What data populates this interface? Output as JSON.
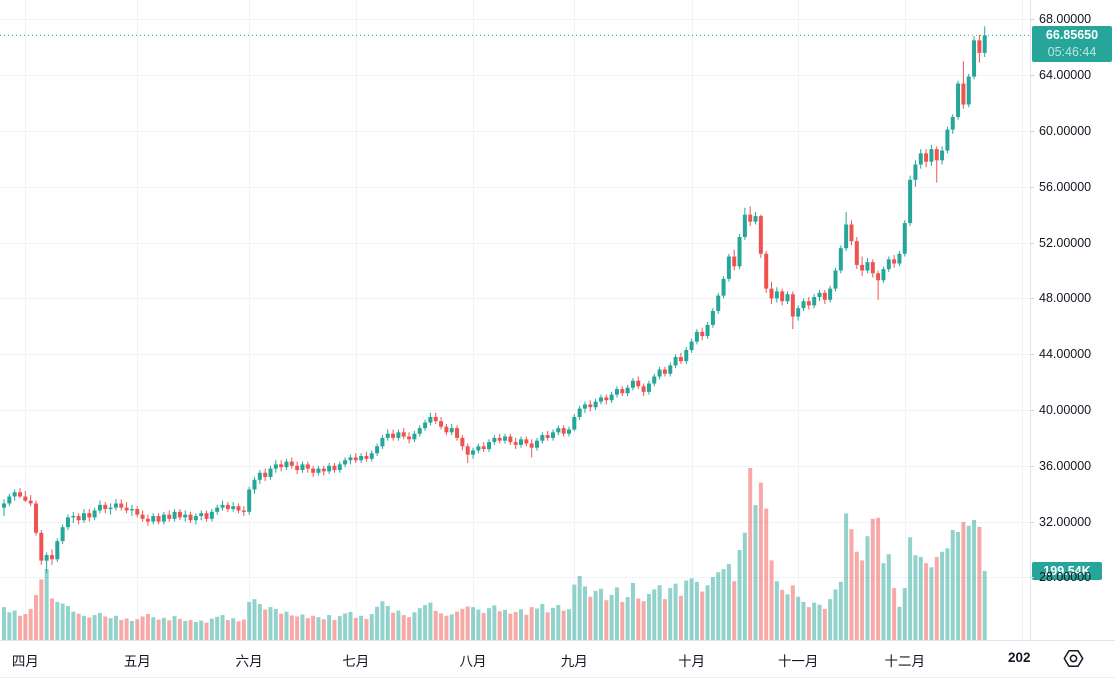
{
  "price_scale": {
    "last_price": "66.85650",
    "countdown": "05:46:44",
    "volume_label": "199.54K"
  },
  "time_scale": {
    "year": {
      "label": "202",
      "index": 191
    }
  },
  "chart_data": {
    "type": "candlestick",
    "volume_overlay": true,
    "title": "",
    "xlabel": "",
    "ylabel": "",
    "ylim": [
      28,
      68
    ],
    "grid": true,
    "legend_position": "none",
    "last_close": 66.8565,
    "last_volume_k": 199.54,
    "y_ticks": [
      {
        "value": 68,
        "label": "68.00000"
      },
      {
        "value": 64,
        "label": "64.00000"
      },
      {
        "value": 60,
        "label": "60.00000"
      },
      {
        "value": 56,
        "label": "56.00000"
      },
      {
        "value": 52,
        "label": "52.00000"
      },
      {
        "value": 48,
        "label": "48.00000"
      },
      {
        "value": 44,
        "label": "44.00000"
      },
      {
        "value": 40,
        "label": "40.00000"
      },
      {
        "value": 36,
        "label": "36.00000"
      },
      {
        "value": 32,
        "label": "32.00000"
      },
      {
        "value": 28,
        "label": "28.00000"
      }
    ],
    "months": [
      {
        "label": "四月",
        "index": 4
      },
      {
        "label": "五月",
        "index": 25
      },
      {
        "label": "六月",
        "index": 46
      },
      {
        "label": "七月",
        "index": 66
      },
      {
        "label": "八月",
        "index": 88
      },
      {
        "label": "九月",
        "index": 107
      },
      {
        "label": "十月",
        "index": 129
      },
      {
        "label": "十一月",
        "index": 149
      },
      {
        "label": "十二月",
        "index": 169
      }
    ],
    "colors": {
      "up": "#26a69a",
      "down": "#ef5350",
      "grid": "#f0f3fa",
      "axis_text": "#131722",
      "price_line": "#26a69a",
      "price_badge_bg": "#26a69a",
      "volume_badge_bg": "#26a69a",
      "volume_opacity": 0.5
    },
    "candles_format": [
      "open",
      "high",
      "low",
      "close",
      "volume_k"
    ],
    "candles": [
      [
        33.0,
        33.6,
        32.4,
        33.3,
        95
      ],
      [
        33.3,
        34.0,
        33.1,
        33.8,
        80
      ],
      [
        33.8,
        34.3,
        33.5,
        34.1,
        85
      ],
      [
        34.1,
        34.4,
        33.7,
        33.8,
        70
      ],
      [
        33.8,
        34.2,
        33.4,
        33.5,
        75
      ],
      [
        33.5,
        33.9,
        33.1,
        33.3,
        90
      ],
      [
        33.3,
        33.5,
        31.0,
        31.2,
        130
      ],
      [
        31.2,
        31.4,
        28.9,
        29.2,
        175
      ],
      [
        29.2,
        29.8,
        28.3,
        29.6,
        205
      ],
      [
        29.6,
        30.0,
        28.9,
        29.3,
        120
      ],
      [
        29.3,
        30.8,
        29.1,
        30.6,
        110
      ],
      [
        30.6,
        31.8,
        30.4,
        31.6,
        105
      ],
      [
        31.6,
        32.5,
        31.4,
        32.3,
        98
      ],
      [
        32.3,
        32.7,
        31.9,
        32.4,
        82
      ],
      [
        32.4,
        32.6,
        31.8,
        32.1,
        76
      ],
      [
        32.1,
        32.9,
        31.9,
        32.6,
        70
      ],
      [
        32.6,
        32.9,
        32.0,
        32.3,
        65
      ],
      [
        32.3,
        33.0,
        32.1,
        32.8,
        72
      ],
      [
        32.8,
        33.5,
        32.6,
        33.2,
        78
      ],
      [
        33.2,
        33.4,
        32.6,
        32.9,
        68
      ],
      [
        32.9,
        33.3,
        32.5,
        33.0,
        63
      ],
      [
        33.0,
        33.6,
        32.8,
        33.3,
        70
      ],
      [
        33.3,
        33.6,
        32.8,
        33.0,
        58
      ],
      [
        33.0,
        33.4,
        32.6,
        32.8,
        62
      ],
      [
        32.8,
        33.2,
        32.4,
        32.9,
        55
      ],
      [
        32.9,
        33.1,
        32.3,
        32.5,
        60
      ],
      [
        32.5,
        32.8,
        32.0,
        32.2,
        68
      ],
      [
        32.2,
        32.5,
        31.7,
        32.0,
        75
      ],
      [
        32.0,
        32.6,
        31.8,
        32.4,
        66
      ],
      [
        32.4,
        32.6,
        31.8,
        32.0,
        59
      ],
      [
        32.0,
        32.7,
        31.8,
        32.5,
        64
      ],
      [
        32.5,
        32.8,
        32.0,
        32.2,
        57
      ],
      [
        32.2,
        32.9,
        32.0,
        32.7,
        69
      ],
      [
        32.7,
        32.9,
        32.1,
        32.3,
        61
      ],
      [
        32.3,
        32.8,
        32.0,
        32.5,
        55
      ],
      [
        32.5,
        32.7,
        31.9,
        32.1,
        58
      ],
      [
        32.1,
        32.6,
        31.8,
        32.4,
        52
      ],
      [
        32.4,
        32.8,
        32.1,
        32.6,
        56
      ],
      [
        32.6,
        32.8,
        32.0,
        32.2,
        50
      ],
      [
        32.2,
        32.9,
        32.0,
        32.7,
        62
      ],
      [
        32.7,
        33.2,
        32.5,
        33.0,
        67
      ],
      [
        33.0,
        33.5,
        32.8,
        33.2,
        72
      ],
      [
        33.2,
        33.4,
        32.7,
        32.9,
        58
      ],
      [
        32.9,
        33.4,
        32.7,
        33.1,
        63
      ],
      [
        33.1,
        33.3,
        32.6,
        32.8,
        54
      ],
      [
        32.8,
        33.1,
        32.4,
        32.7,
        59
      ],
      [
        32.7,
        34.5,
        32.5,
        34.3,
        110
      ],
      [
        34.3,
        35.2,
        34.0,
        35.0,
        118
      ],
      [
        35.0,
        35.7,
        34.7,
        35.5,
        104
      ],
      [
        35.5,
        35.8,
        34.9,
        35.2,
        88
      ],
      [
        35.2,
        36.0,
        35.0,
        35.8,
        95
      ],
      [
        35.8,
        36.4,
        35.5,
        36.1,
        90
      ],
      [
        36.1,
        36.4,
        35.6,
        35.9,
        76
      ],
      [
        35.9,
        36.5,
        35.7,
        36.3,
        82
      ],
      [
        36.3,
        36.6,
        35.8,
        36.0,
        71
      ],
      [
        36.0,
        36.3,
        35.4,
        35.7,
        68
      ],
      [
        35.7,
        36.3,
        35.5,
        36.1,
        74
      ],
      [
        36.1,
        36.3,
        35.5,
        35.8,
        63
      ],
      [
        35.8,
        36.0,
        35.2,
        35.5,
        70
      ],
      [
        35.5,
        36.0,
        35.3,
        35.8,
        66
      ],
      [
        35.8,
        36.0,
        35.3,
        35.6,
        60
      ],
      [
        35.6,
        36.2,
        35.4,
        36.0,
        72
      ],
      [
        36.0,
        36.2,
        35.5,
        35.7,
        58
      ],
      [
        35.7,
        36.3,
        35.5,
        36.1,
        69
      ],
      [
        36.1,
        36.6,
        35.9,
        36.4,
        77
      ],
      [
        36.4,
        36.8,
        36.1,
        36.6,
        81
      ],
      [
        36.6,
        36.9,
        36.2,
        36.4,
        64
      ],
      [
        36.4,
        36.9,
        36.2,
        36.7,
        70
      ],
      [
        36.7,
        37.0,
        36.3,
        36.5,
        61
      ],
      [
        36.5,
        37.1,
        36.3,
        36.9,
        75
      ],
      [
        36.9,
        37.6,
        36.7,
        37.4,
        96
      ],
      [
        37.4,
        38.2,
        37.2,
        38.0,
        112
      ],
      [
        38.0,
        38.6,
        37.8,
        38.3,
        98
      ],
      [
        38.3,
        38.6,
        37.8,
        38.0,
        79
      ],
      [
        38.0,
        38.6,
        37.8,
        38.4,
        85
      ],
      [
        38.4,
        38.7,
        37.9,
        38.1,
        72
      ],
      [
        38.1,
        38.4,
        37.6,
        37.9,
        66
      ],
      [
        37.9,
        38.5,
        37.7,
        38.3,
        80
      ],
      [
        38.3,
        38.9,
        38.1,
        38.7,
        92
      ],
      [
        38.7,
        39.3,
        38.5,
        39.1,
        101
      ],
      [
        39.1,
        39.8,
        38.9,
        39.5,
        108
      ],
      [
        39.5,
        39.8,
        39.0,
        39.2,
        84
      ],
      [
        39.2,
        39.5,
        38.6,
        38.8,
        77
      ],
      [
        38.8,
        39.0,
        38.2,
        38.4,
        70
      ],
      [
        38.4,
        39.0,
        38.2,
        38.7,
        74
      ],
      [
        38.7,
        38.9,
        37.8,
        38.0,
        82
      ],
      [
        38.0,
        38.2,
        37.1,
        37.4,
        90
      ],
      [
        37.4,
        37.6,
        36.2,
        36.8,
        97
      ],
      [
        36.8,
        37.3,
        36.5,
        37.1,
        95
      ],
      [
        37.1,
        37.6,
        36.9,
        37.4,
        88
      ],
      [
        37.4,
        37.7,
        37.0,
        37.2,
        78
      ],
      [
        37.2,
        37.9,
        37.0,
        37.7,
        92
      ],
      [
        37.7,
        38.2,
        37.5,
        38.0,
        100
      ],
      [
        38.0,
        38.3,
        37.6,
        37.8,
        83
      ],
      [
        37.8,
        38.3,
        37.6,
        38.1,
        87
      ],
      [
        38.1,
        38.3,
        37.5,
        37.7,
        76
      ],
      [
        37.7,
        38.0,
        37.2,
        37.5,
        81
      ],
      [
        37.5,
        38.1,
        37.3,
        37.9,
        89
      ],
      [
        37.9,
        38.1,
        37.4,
        37.6,
        73
      ],
      [
        37.6,
        37.9,
        36.6,
        37.3,
        95
      ],
      [
        37.3,
        38.0,
        37.1,
        37.8,
        91
      ],
      [
        37.8,
        38.4,
        37.6,
        38.2,
        104
      ],
      [
        38.2,
        38.5,
        37.8,
        38.0,
        80
      ],
      [
        38.0,
        38.6,
        37.8,
        38.4,
        93
      ],
      [
        38.4,
        38.9,
        38.2,
        38.7,
        101
      ],
      [
        38.7,
        38.9,
        38.1,
        38.3,
        85
      ],
      [
        38.3,
        38.8,
        38.1,
        38.6,
        89
      ],
      [
        38.6,
        39.7,
        38.5,
        39.5,
        160
      ],
      [
        39.5,
        40.3,
        39.3,
        40.1,
        185
      ],
      [
        40.1,
        40.6,
        39.8,
        40.4,
        155
      ],
      [
        40.4,
        40.7,
        39.9,
        40.2,
        125
      ],
      [
        40.2,
        40.8,
        40.0,
        40.6,
        142
      ],
      [
        40.6,
        41.1,
        40.4,
        40.9,
        148
      ],
      [
        40.9,
        41.1,
        40.4,
        40.7,
        115
      ],
      [
        40.7,
        41.3,
        40.5,
        41.1,
        130
      ],
      [
        41.1,
        41.7,
        40.9,
        41.5,
        152
      ],
      [
        41.5,
        41.7,
        41.0,
        41.2,
        110
      ],
      [
        41.2,
        41.8,
        41.0,
        41.6,
        124
      ],
      [
        41.6,
        42.3,
        41.4,
        42.1,
        165
      ],
      [
        42.1,
        42.4,
        41.5,
        41.7,
        120
      ],
      [
        41.7,
        41.9,
        41.0,
        41.3,
        112
      ],
      [
        41.3,
        42.1,
        41.1,
        41.9,
        133
      ],
      [
        41.9,
        42.6,
        41.7,
        42.4,
        146
      ],
      [
        42.4,
        43.1,
        42.2,
        42.9,
        158
      ],
      [
        42.9,
        43.1,
        42.4,
        42.6,
        118
      ],
      [
        42.6,
        43.4,
        42.4,
        43.2,
        150
      ],
      [
        43.2,
        44.0,
        43.0,
        43.8,
        163
      ],
      [
        43.8,
        44.1,
        43.3,
        43.5,
        128
      ],
      [
        43.5,
        44.5,
        43.3,
        44.3,
        172
      ],
      [
        44.3,
        45.1,
        44.1,
        44.9,
        178
      ],
      [
        44.9,
        45.8,
        44.7,
        45.6,
        168
      ],
      [
        45.6,
        45.9,
        45.0,
        45.3,
        140
      ],
      [
        45.3,
        46.3,
        45.1,
        46.1,
        158
      ],
      [
        46.1,
        47.3,
        45.9,
        47.1,
        182
      ],
      [
        47.1,
        48.4,
        46.9,
        48.2,
        196
      ],
      [
        48.2,
        49.6,
        48.0,
        49.4,
        205
      ],
      [
        49.4,
        51.2,
        49.2,
        51.0,
        220
      ],
      [
        51.0,
        51.5,
        50.0,
        50.3,
        170
      ],
      [
        50.3,
        52.6,
        50.1,
        52.4,
        260
      ],
      [
        52.4,
        54.5,
        52.2,
        54.0,
        310
      ],
      [
        54.0,
        54.6,
        53.2,
        53.5,
        497
      ],
      [
        53.5,
        54.2,
        53.3,
        53.9,
        390
      ],
      [
        53.9,
        54.0,
        50.9,
        51.2,
        455
      ],
      [
        51.2,
        51.4,
        48.4,
        48.7,
        380
      ],
      [
        48.7,
        49.2,
        47.6,
        48.0,
        230
      ],
      [
        48.0,
        48.8,
        47.7,
        48.5,
        170
      ],
      [
        48.5,
        48.7,
        47.5,
        47.8,
        145
      ],
      [
        47.8,
        48.5,
        47.6,
        48.3,
        132
      ],
      [
        48.3,
        48.5,
        45.8,
        46.7,
        158
      ],
      [
        46.7,
        47.5,
        46.4,
        47.3,
        125
      ],
      [
        47.3,
        48.0,
        47.1,
        47.8,
        110
      ],
      [
        47.8,
        48.1,
        47.2,
        47.5,
        95
      ],
      [
        47.5,
        48.3,
        47.3,
        48.1,
        108
      ],
      [
        48.1,
        48.6,
        47.8,
        48.4,
        102
      ],
      [
        48.4,
        48.6,
        47.6,
        47.9,
        90
      ],
      [
        47.9,
        48.9,
        47.7,
        48.7,
        118
      ],
      [
        48.7,
        50.2,
        48.5,
        50.0,
        146
      ],
      [
        50.0,
        51.8,
        49.8,
        51.6,
        168
      ],
      [
        51.6,
        54.2,
        51.4,
        53.3,
        366
      ],
      [
        53.3,
        53.6,
        51.8,
        52.1,
        320
      ],
      [
        52.1,
        52.4,
        50.1,
        50.4,
        255
      ],
      [
        50.4,
        51.0,
        49.6,
        50.0,
        230
      ],
      [
        50.0,
        50.9,
        49.8,
        50.6,
        300
      ],
      [
        50.6,
        50.8,
        49.5,
        49.8,
        350
      ],
      [
        49.8,
        50.0,
        47.9,
        49.3,
        353
      ],
      [
        49.3,
        50.3,
        49.1,
        50.1,
        222
      ],
      [
        50.1,
        51.0,
        49.9,
        50.8,
        248
      ],
      [
        50.8,
        51.1,
        50.2,
        50.5,
        150
      ],
      [
        50.5,
        51.4,
        50.3,
        51.2,
        96
      ],
      [
        51.2,
        53.6,
        51.0,
        53.4,
        150
      ],
      [
        53.4,
        56.8,
        53.2,
        56.5,
        297
      ],
      [
        56.5,
        57.9,
        56.0,
        57.6,
        245
      ],
      [
        57.6,
        58.7,
        57.3,
        58.4,
        240
      ],
      [
        58.4,
        58.7,
        57.4,
        57.8,
        222
      ],
      [
        57.8,
        59.0,
        57.5,
        58.7,
        210
      ],
      [
        58.7,
        58.9,
        56.3,
        57.9,
        240
      ],
      [
        57.9,
        58.9,
        57.6,
        58.6,
        255
      ],
      [
        58.6,
        60.3,
        58.4,
        60.1,
        265
      ],
      [
        60.1,
        61.2,
        59.8,
        61.0,
        318
      ],
      [
        61.0,
        63.6,
        60.8,
        63.4,
        312
      ],
      [
        63.4,
        65.0,
        61.6,
        61.9,
        341
      ],
      [
        61.9,
        64.1,
        61.7,
        63.9,
        330
      ],
      [
        63.9,
        66.8,
        63.7,
        66.5,
        347
      ],
      [
        66.5,
        66.9,
        64.9,
        65.6,
        327
      ],
      [
        65.6,
        67.5,
        65.3,
        66.8565,
        199.54
      ]
    ]
  }
}
